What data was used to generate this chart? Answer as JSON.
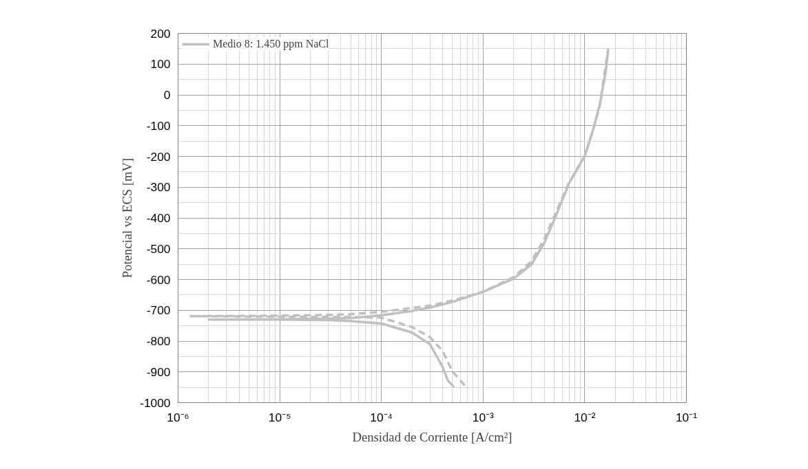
{
  "chart_data": {
    "type": "line",
    "xlabel": "Densidad de Corriente [A/cm²]",
    "ylabel": "Potencial vs ECS [mV]",
    "log": "x",
    "grid": true,
    "legend": "top left",
    "xlim": [
      1e-06,
      0.1
    ],
    "ylim": [
      -1000,
      200
    ],
    "xticks": [
      {
        "value": 1e-06,
        "label": "10⁻⁶"
      },
      {
        "value": 1e-05,
        "label": "10⁻⁵"
      },
      {
        "value": 0.0001,
        "label": "10⁻⁴"
      },
      {
        "value": 0.001,
        "label": "10⁻³"
      },
      {
        "value": 0.01,
        "label": "10⁻²"
      },
      {
        "value": 0.1,
        "label": "10⁻¹"
      }
    ],
    "yticks": [
      -1000,
      -900,
      -800,
      -700,
      -600,
      -500,
      -400,
      -300,
      -200,
      -100,
      0,
      100,
      200
    ],
    "series": [
      {
        "name": "Medio 8: 1.450 ppm NaCl",
        "color": "#c0c0c0",
        "line_style": "solid",
        "x": [
          0.00052,
          0.00045,
          0.0004,
          0.0003,
          0.0002,
          0.0001,
          5e-05,
          3e-05,
          1e-05,
          2e-06,
          1e-05,
          3e-05,
          5e-05,
          0.0001,
          0.0002,
          0.0003,
          0.0005,
          0.001,
          0.002,
          0.003,
          0.004,
          0.005,
          0.007,
          0.01,
          0.012,
          0.014,
          0.016,
          0.017
        ],
        "values": [
          -950,
          -928,
          -884,
          -810,
          -772,
          -743,
          -735,
          -732,
          -730,
          -730,
          -729,
          -727,
          -725,
          -716,
          -702,
          -691,
          -673,
          -640,
          -597,
          -550,
          -481,
          -407,
          -288,
          -198,
          -116,
          -34,
          70,
          146
        ]
      },
      {
        "color": "#c0c0c0",
        "line_style": "dashed",
        "x": [
          0.00066,
          0.0005,
          0.0004,
          0.0003,
          0.0002,
          0.0001,
          5e-05,
          2e-05,
          5e-06,
          1.3e-06,
          5e-06,
          2e-05,
          5e-05,
          0.0001,
          0.0003,
          0.0005,
          0.001,
          0.002,
          0.003,
          0.004,
          0.005,
          0.007,
          0.01,
          0.012,
          0.014,
          0.017
        ],
        "values": [
          -944,
          -899,
          -832,
          -787,
          -754,
          -724,
          -722,
          -721,
          -720,
          -719,
          -718,
          -716,
          -713,
          -705,
          -685,
          -668,
          -640,
          -592,
          -540,
          -468,
          -395,
          -285,
          -200,
          -118,
          -38,
          150
        ]
      }
    ]
  }
}
